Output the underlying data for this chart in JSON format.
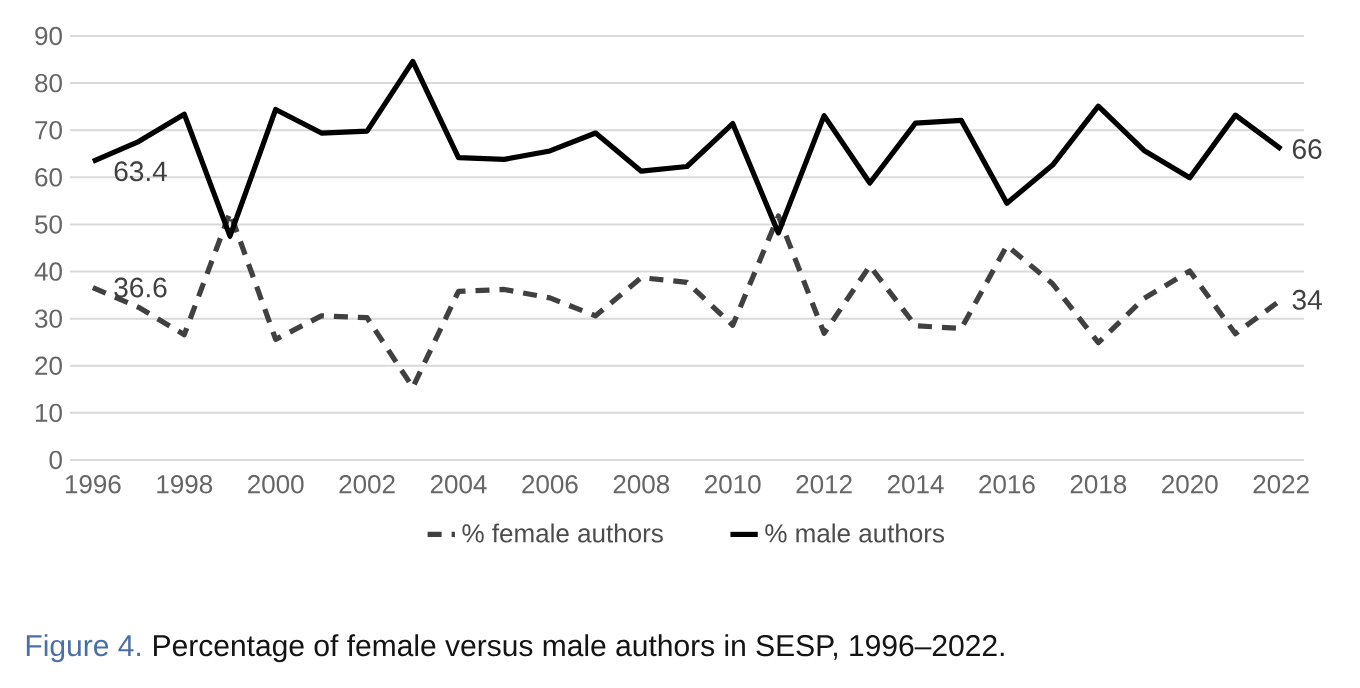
{
  "chart_data": {
    "type": "line",
    "x": [
      1996,
      1997,
      1998,
      1999,
      2000,
      2001,
      2002,
      2003,
      2004,
      2005,
      2006,
      2007,
      2008,
      2009,
      2010,
      2011,
      2012,
      2013,
      2014,
      2015,
      2016,
      2017,
      2018,
      2019,
      2020,
      2021,
      2022
    ],
    "series": [
      {
        "name": "% female authors",
        "color": "#404040",
        "line_style": "dashed",
        "values": [
          36.6,
          32.4,
          26.6,
          52.5,
          25.6,
          30.6,
          30.2,
          15.4,
          35.8,
          36.2,
          34.4,
          30.6,
          38.7,
          37.7,
          28.6,
          51.8,
          26.9,
          41.2,
          28.5,
          27.9,
          45.5,
          37.4,
          24.9,
          34.3,
          40.1,
          26.8,
          34
        ],
        "value_labels": [
          "36.6",
          null,
          null,
          null,
          null,
          null,
          null,
          null,
          null,
          null,
          null,
          null,
          null,
          null,
          null,
          null,
          null,
          null,
          null,
          null,
          null,
          null,
          null,
          null,
          null,
          null,
          "34"
        ]
      },
      {
        "name": "% male authors",
        "color": "#000000",
        "line_style": "solid",
        "values": [
          63.4,
          67.6,
          73.4,
          47.5,
          74.4,
          69.4,
          69.8,
          84.6,
          64.2,
          63.8,
          65.6,
          69.4,
          61.3,
          62.3,
          71.4,
          48.2,
          73.1,
          58.8,
          71.5,
          72.1,
          54.5,
          62.6,
          75.1,
          65.7,
          59.9,
          73.2,
          66
        ],
        "value_labels": [
          "63.4",
          null,
          null,
          null,
          null,
          null,
          null,
          null,
          null,
          null,
          null,
          null,
          null,
          null,
          null,
          null,
          null,
          null,
          null,
          null,
          null,
          null,
          null,
          null,
          null,
          null,
          "66"
        ]
      }
    ],
    "xlim": [
      1995.5,
      2022.5
    ],
    "xticks": [
      1996,
      1998,
      2000,
      2002,
      2004,
      2006,
      2008,
      2010,
      2012,
      2014,
      2016,
      2018,
      2020,
      2022
    ],
    "ylim": [
      0,
      90
    ],
    "yticks": [
      0,
      10,
      20,
      30,
      40,
      50,
      60,
      70,
      80,
      90
    ],
    "grid": "y",
    "legend": "bottom",
    "marker": "none",
    "annotations": [
      "Figure 4.",
      "Percentage of female versus male authors in SESP, 1996–2022."
    ]
  }
}
